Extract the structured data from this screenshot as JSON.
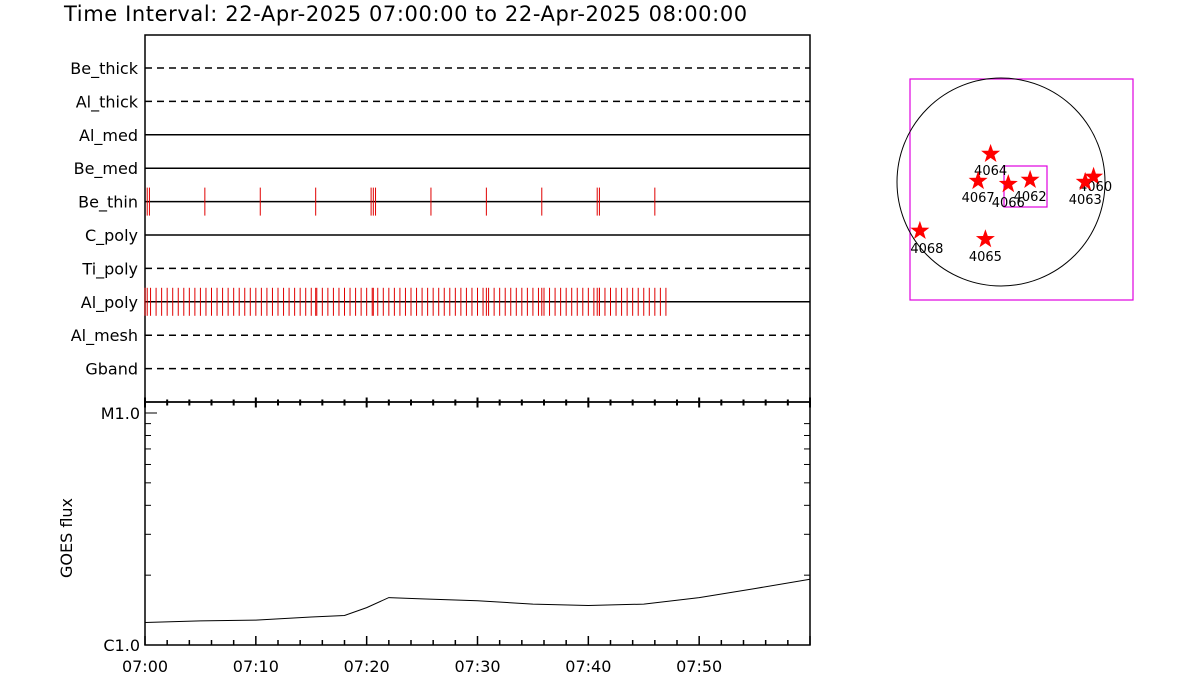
{
  "title": "Time Interval: 22-Apr-2025 07:00:00 to 22-Apr-2025 08:00:00",
  "colors": {
    "events": "#e00000",
    "box": "#e000e0",
    "stars": "#ff0000",
    "axis": "#000000"
  },
  "chart_data": [
    {
      "type": "event-timeline",
      "time_range_min": [
        0,
        60
      ],
      "channels": [
        {
          "name": "Be_thick",
          "style": "dashed",
          "events_min": []
        },
        {
          "name": "Al_thick",
          "style": "dashed",
          "events_min": []
        },
        {
          "name": "Al_med",
          "style": "solid",
          "events_min": []
        },
        {
          "name": "Be_med",
          "style": "solid",
          "events_min": []
        },
        {
          "name": "Be_thin",
          "style": "solid",
          "events_min": [
            0.2,
            0.4,
            5.4,
            10.4,
            15.4,
            20.4,
            20.6,
            20.8,
            25.8,
            30.8,
            35.8,
            40.8,
            41.0,
            46.0
          ]
        },
        {
          "name": "C_poly",
          "style": "solid",
          "events_min": []
        },
        {
          "name": "Ti_poly",
          "style": "dashed",
          "events_min": []
        },
        {
          "name": "Al_poly",
          "style": "solid",
          "events_min": "every 0.5 min from 0.0 to 47.0, plus 0.2, 15.4, 20.6, 30.8, 35.8, 40.8, 41.0"
        },
        {
          "name": "Al_mesh",
          "style": "dashed",
          "events_min": []
        },
        {
          "name": "Gband",
          "style": "dashed",
          "events_min": []
        }
      ]
    },
    {
      "type": "line",
      "ylabel": "GOES flux",
      "y_scale": "log",
      "ylim": [
        1e-06,
        1e-05
      ],
      "y_ticklabels": [
        "C1.0",
        "M1.0"
      ],
      "x_ticklabels": [
        "07:00",
        "07:10",
        "07:20",
        "07:30",
        "07:40",
        "07:50"
      ],
      "xlim_min": [
        0,
        60
      ],
      "series": [
        {
          "x_min": [
            0,
            5,
            10,
            15,
            18,
            20,
            22,
            25,
            30,
            35,
            40,
            45,
            50,
            55,
            60
          ],
          "y": [
            1.25e-06,
            1.27e-06,
            1.28e-06,
            1.32e-06,
            1.34e-06,
            1.45e-06,
            1.6e-06,
            1.58e-06,
            1.55e-06,
            1.5e-06,
            1.48e-06,
            1.5e-06,
            1.6e-06,
            1.75e-06,
            1.92e-06
          ]
        }
      ]
    },
    {
      "type": "scatter",
      "description_units": "solar-disk map",
      "points": [
        {
          "label": "4060",
          "x": 0.89,
          "y": 0.05
        },
        {
          "label": "4062",
          "x": 0.28,
          "y": 0.02
        },
        {
          "label": "4063",
          "x": 0.81,
          "y": 0.0
        },
        {
          "label": "4064",
          "x": -0.1,
          "y": 0.27
        },
        {
          "label": "4065",
          "x": -0.15,
          "y": -0.55
        },
        {
          "label": "4066",
          "x": 0.07,
          "y": -0.02
        },
        {
          "label": "4067",
          "x": -0.22,
          "y": 0.01
        },
        {
          "label": "4068",
          "x": -0.78,
          "y": -0.47
        }
      ]
    }
  ]
}
